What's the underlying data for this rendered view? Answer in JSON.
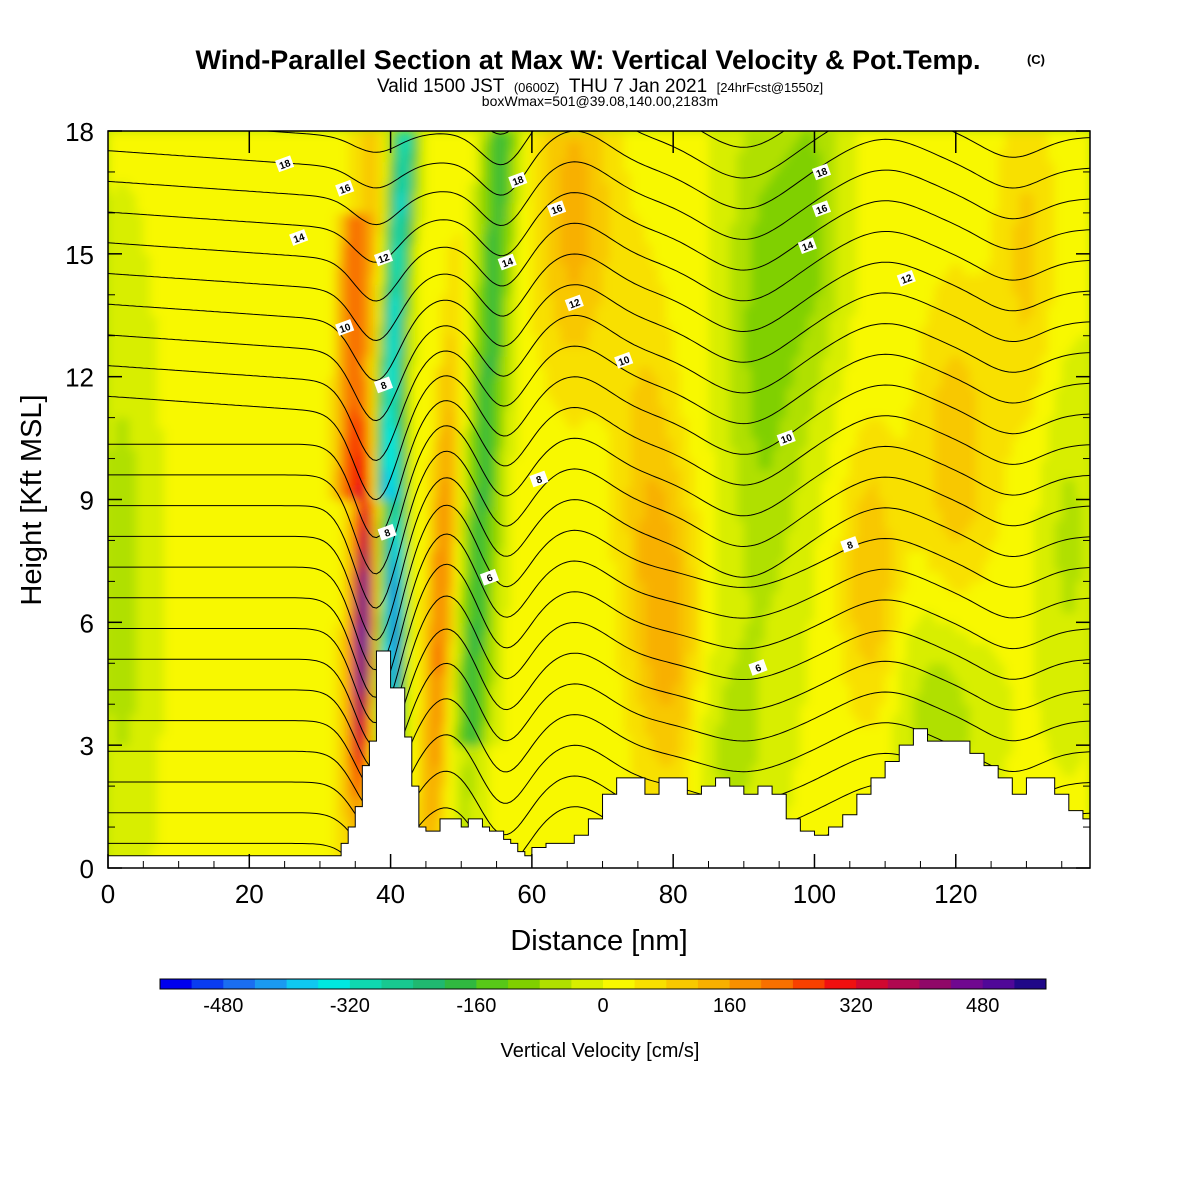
{
  "chart_data": {
    "type": "heatmap",
    "title": "Wind-Parallel Section at Max W: Vertical Velocity & Pot.Temp.",
    "title_mark": "(C)",
    "subtitle_parts": [
      "Valid 1500 JST",
      "(0600Z)",
      "THU 7 Jan 2021",
      "[24hrFcst@1550z]"
    ],
    "subtitle2": "boxWmax=501@39.08,140.00,2183m",
    "xlabel": "Distance [nm]",
    "ylabel": "Height [Kft MSL]",
    "xlim": [
      0,
      139
    ],
    "ylim": [
      0,
      18
    ],
    "x_ticks": [
      "0",
      "20",
      "40",
      "60",
      "80",
      "100",
      "120"
    ],
    "x_tick_values": [
      0,
      20,
      40,
      60,
      80,
      100,
      120
    ],
    "y_ticks": [
      "0",
      "3",
      "6",
      "9",
      "12",
      "15",
      "18"
    ],
    "y_tick_values": [
      0,
      3,
      6,
      9,
      12,
      15,
      18
    ],
    "colorbar": {
      "title": "Vertical Velocity [cm/s]",
      "min": -560,
      "max": 560,
      "step": 40,
      "tick_labels": [
        "-480",
        "-320",
        "-160",
        "0",
        "160",
        "320",
        "480"
      ],
      "tick_values": [
        -480,
        -320,
        -160,
        0,
        160,
        320,
        480
      ],
      "colors": [
        "#0000ee",
        "#0a3cf0",
        "#1a6ef0",
        "#1a9af0",
        "#10c8f0",
        "#00e8e0",
        "#10d8b0",
        "#18c890",
        "#20b870",
        "#30b840",
        "#58c818",
        "#80d000",
        "#b0e000",
        "#d8ee00",
        "#f8f800",
        "#f8e000",
        "#f8c800",
        "#f8b000",
        "#f89000",
        "#f87000",
        "#f84000",
        "#f01010",
        "#d00830",
        "#b00850",
        "#900868",
        "#700890",
        "#500898",
        "#200888"
      ],
      "zero_color": "#b8e400"
    },
    "terrain": [
      [
        0,
        0.3
      ],
      [
        32,
        0.3
      ],
      [
        33,
        0.6
      ],
      [
        34,
        1.0
      ],
      [
        35,
        1.5
      ],
      [
        36,
        2.5
      ],
      [
        37,
        3.1
      ],
      [
        38,
        5.3
      ],
      [
        39,
        5.3
      ],
      [
        40,
        4.4
      ],
      [
        41,
        4.4
      ],
      [
        42,
        3.2
      ],
      [
        43,
        2.0
      ],
      [
        44,
        1.0
      ],
      [
        45,
        0.9
      ],
      [
        46,
        0.9
      ],
      [
        47,
        1.2
      ],
      [
        48,
        1.2
      ],
      [
        49,
        1.2
      ],
      [
        50,
        1.0
      ],
      [
        51,
        1.2
      ],
      [
        52,
        1.2
      ],
      [
        53,
        1.0
      ],
      [
        54,
        0.9
      ],
      [
        55,
        0.9
      ],
      [
        56,
        0.7
      ],
      [
        57,
        0.6
      ],
      [
        58,
        0.4
      ],
      [
        59,
        0.3
      ],
      [
        60,
        0.5
      ],
      [
        62,
        0.6
      ],
      [
        64,
        0.6
      ],
      [
        66,
        0.8
      ],
      [
        68,
        1.2
      ],
      [
        70,
        1.8
      ],
      [
        72,
        2.2
      ],
      [
        74,
        2.2
      ],
      [
        76,
        1.8
      ],
      [
        78,
        2.2
      ],
      [
        80,
        2.2
      ],
      [
        82,
        1.8
      ],
      [
        84,
        2.0
      ],
      [
        86,
        2.2
      ],
      [
        88,
        2.0
      ],
      [
        90,
        1.8
      ],
      [
        92,
        2.0
      ],
      [
        94,
        1.8
      ],
      [
        96,
        1.2
      ],
      [
        98,
        0.9
      ],
      [
        100,
        0.8
      ],
      [
        102,
        1.0
      ],
      [
        104,
        1.3
      ],
      [
        106,
        1.8
      ],
      [
        108,
        2.2
      ],
      [
        110,
        2.6
      ],
      [
        112,
        3.0
      ],
      [
        114,
        3.4
      ],
      [
        116,
        3.1
      ],
      [
        118,
        3.1
      ],
      [
        120,
        3.1
      ],
      [
        122,
        2.8
      ],
      [
        124,
        2.5
      ],
      [
        126,
        2.2
      ],
      [
        128,
        1.8
      ],
      [
        130,
        2.2
      ],
      [
        132,
        2.2
      ],
      [
        134,
        1.8
      ],
      [
        136,
        1.4
      ],
      [
        138,
        1.2
      ],
      [
        139,
        1.2
      ]
    ],
    "contour_labels": [
      {
        "text": "18",
        "x": 25,
        "y": 17.2
      },
      {
        "text": "16",
        "x": 33.5,
        "y": 16.6
      },
      {
        "text": "14",
        "x": 27,
        "y": 15.4
      },
      {
        "text": "12",
        "x": 39,
        "y": 14.9
      },
      {
        "text": "10",
        "x": 33.5,
        "y": 13.2
      },
      {
        "text": "8",
        "x": 39,
        "y": 11.8
      },
      {
        "text": "8",
        "x": 39.5,
        "y": 8.2
      },
      {
        "text": "18",
        "x": 58,
        "y": 16.8
      },
      {
        "text": "16",
        "x": 63.5,
        "y": 16.1
      },
      {
        "text": "14",
        "x": 56.5,
        "y": 14.8
      },
      {
        "text": "12",
        "x": 66,
        "y": 13.8
      },
      {
        "text": "10",
        "x": 73,
        "y": 12.4
      },
      {
        "text": "8",
        "x": 61,
        "y": 9.5
      },
      {
        "text": "6",
        "x": 54,
        "y": 7.1
      },
      {
        "text": "18",
        "x": 101,
        "y": 17.0
      },
      {
        "text": "16",
        "x": 101,
        "y": 16.1
      },
      {
        "text": "14",
        "x": 99,
        "y": 15.2
      },
      {
        "text": "12",
        "x": 113,
        "y": 14.4
      },
      {
        "text": "10",
        "x": 96,
        "y": 10.5
      },
      {
        "text": "8",
        "x": 105,
        "y": 7.9
      },
      {
        "text": "6",
        "x": 92,
        "y": 4.9
      }
    ],
    "grid": false
  }
}
